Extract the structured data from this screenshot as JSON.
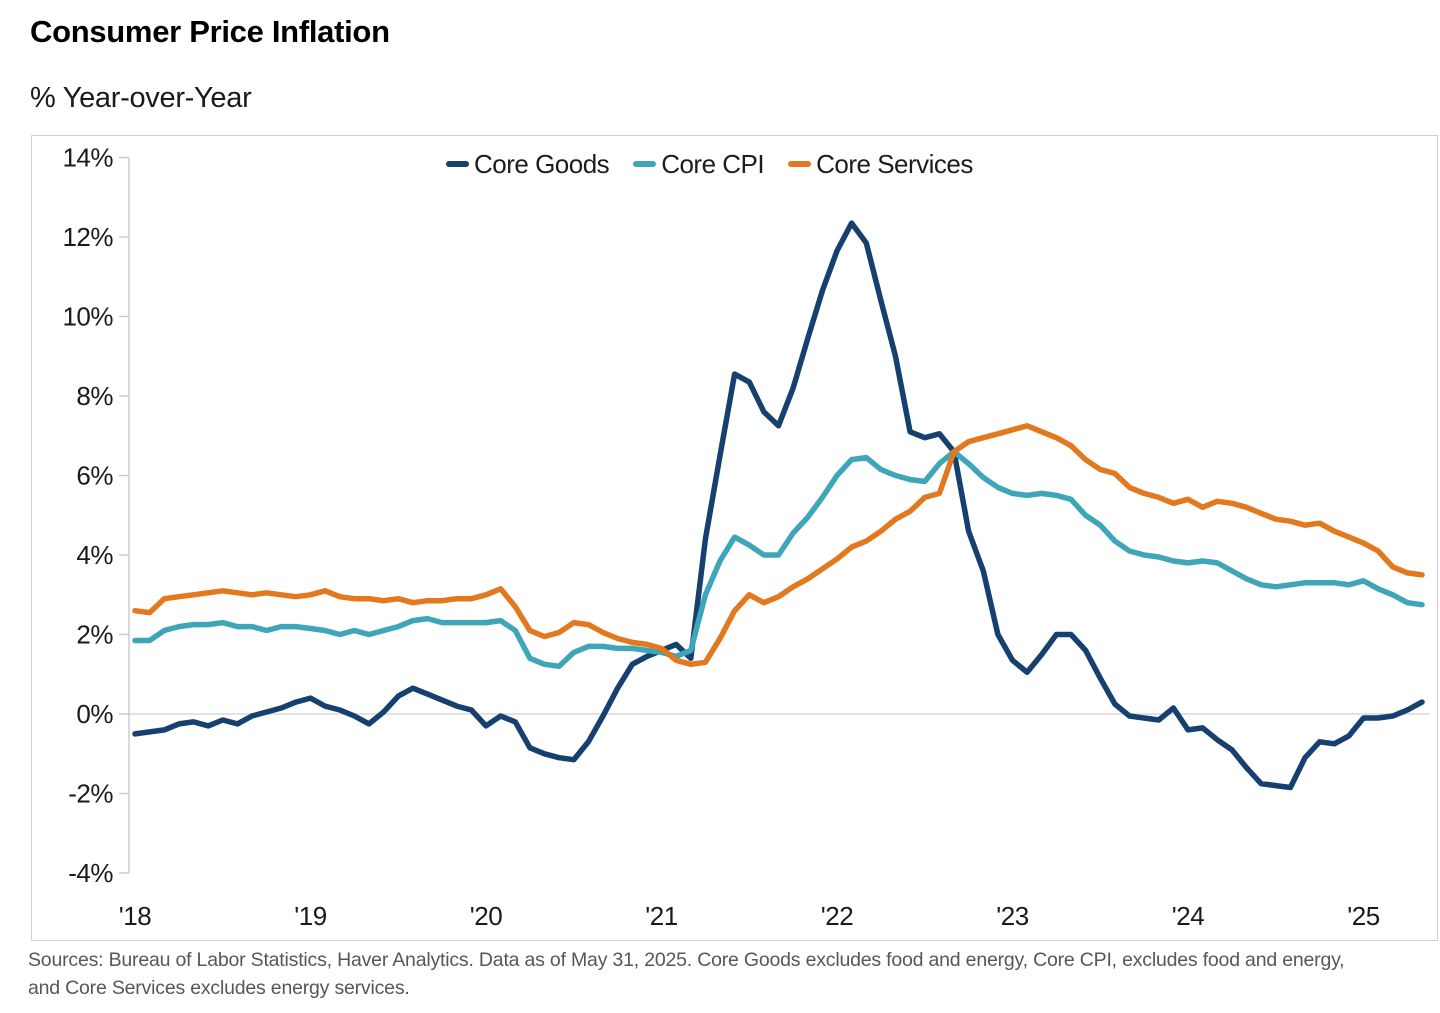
{
  "header": {
    "title": "Consumer Price Inflation",
    "subtitle": "% Year-over-Year"
  },
  "legend": {
    "items": [
      {
        "label": "Core Goods",
        "color": "#16406f"
      },
      {
        "label": "Core CPI",
        "color": "#3fa5b9"
      },
      {
        "label": "Core Services",
        "color": "#e2791e"
      }
    ]
  },
  "footer": {
    "lines": [
      "Sources: Bureau of Labor Statistics, Haver Analytics. Data as of May 31, 2025. Core Goods excludes food and energy, Core CPI, excludes food and energy,",
      "and Core Services excludes energy services."
    ]
  },
  "colors": {
    "core_goods": "#16406f",
    "core_cpi": "#3fa5b9",
    "core_services": "#e2791e",
    "axis": "#c9c9c9",
    "gridline": "#d9d9d9",
    "border": "#cfcfcf",
    "footer_text": "#56575b"
  },
  "chart_data": {
    "type": "line",
    "title": "Consumer Price Inflation",
    "subtitle": "% Year-over-Year",
    "x_unit": "month",
    "x_start": "2018-01",
    "x_end": "2025-05",
    "x_tick_labels": [
      "'18",
      "'19",
      "'20",
      "'21",
      "'22",
      "'23",
      "'24",
      "'25"
    ],
    "x_tick_month_index": [
      0,
      12,
      24,
      36,
      48,
      60,
      72,
      84
    ],
    "ylim": [
      -4,
      14
    ],
    "y_ticks": [
      14,
      12,
      10,
      8,
      6,
      4,
      2,
      0,
      "-2",
      "-4"
    ],
    "y_tick_suffix": "%",
    "grid": "horizontal line at 0% only",
    "legend_position": "top-center-inside",
    "series": [
      {
        "name": "Core Goods",
        "color": "#16406f",
        "values": [
          -0.5,
          -0.45,
          -0.4,
          -0.25,
          -0.2,
          -0.3,
          -0.15,
          -0.25,
          -0.05,
          0.05,
          0.15,
          0.3,
          0.4,
          0.2,
          0.1,
          -0.05,
          -0.25,
          0.05,
          0.45,
          0.65,
          0.5,
          0.35,
          0.2,
          0.1,
          -0.3,
          -0.05,
          -0.2,
          -0.85,
          -1.0,
          -1.1,
          -1.15,
          -0.7,
          -0.05,
          0.65,
          1.25,
          1.45,
          1.6,
          1.75,
          1.4,
          4.4,
          6.5,
          8.55,
          8.35,
          7.6,
          7.25,
          8.2,
          9.45,
          10.65,
          11.65,
          12.35,
          11.85,
          10.4,
          9.0,
          7.1,
          6.95,
          7.05,
          6.6,
          4.6,
          3.6,
          2.0,
          1.35,
          1.05,
          1.5,
          2.0,
          2.0,
          1.6,
          0.9,
          0.25,
          -0.05,
          -0.1,
          -0.15,
          0.15,
          -0.4,
          -0.35,
          -0.65,
          -0.9,
          -1.35,
          -1.75,
          -1.8,
          -1.85,
          -1.1,
          -0.7,
          -0.75,
          -0.55,
          -0.1,
          -0.1,
          -0.05,
          0.1,
          0.3
        ]
      },
      {
        "name": "Core CPI",
        "color": "#3fa5b9",
        "values": [
          1.85,
          1.85,
          2.1,
          2.2,
          2.25,
          2.25,
          2.3,
          2.2,
          2.2,
          2.1,
          2.2,
          2.2,
          2.15,
          2.1,
          2.0,
          2.1,
          2.0,
          2.1,
          2.2,
          2.35,
          2.4,
          2.3,
          2.3,
          2.3,
          2.3,
          2.35,
          2.1,
          1.4,
          1.25,
          1.2,
          1.55,
          1.7,
          1.7,
          1.65,
          1.65,
          1.6,
          1.55,
          1.45,
          1.6,
          3.0,
          3.85,
          4.45,
          4.25,
          4.0,
          4.0,
          4.55,
          4.95,
          5.45,
          6.0,
          6.4,
          6.45,
          6.15,
          6.0,
          5.9,
          5.85,
          6.3,
          6.6,
          6.3,
          5.95,
          5.7,
          5.55,
          5.5,
          5.55,
          5.5,
          5.4,
          5.0,
          4.75,
          4.35,
          4.1,
          4.0,
          3.95,
          3.85,
          3.8,
          3.85,
          3.8,
          3.6,
          3.4,
          3.25,
          3.2,
          3.25,
          3.3,
          3.3,
          3.3,
          3.25,
          3.35,
          3.15,
          3.0,
          2.8,
          2.75
        ]
      },
      {
        "name": "Core Services",
        "color": "#e2791e",
        "values": [
          2.6,
          2.55,
          2.9,
          2.95,
          3.0,
          3.05,
          3.1,
          3.05,
          3.0,
          3.05,
          3.0,
          2.95,
          3.0,
          3.1,
          2.95,
          2.9,
          2.9,
          2.85,
          2.9,
          2.8,
          2.85,
          2.85,
          2.9,
          2.9,
          3.0,
          3.15,
          2.7,
          2.1,
          1.95,
          2.05,
          2.3,
          2.25,
          2.05,
          1.9,
          1.8,
          1.75,
          1.65,
          1.35,
          1.25,
          1.3,
          1.9,
          2.6,
          3.0,
          2.8,
          2.95,
          3.2,
          3.4,
          3.65,
          3.9,
          4.2,
          4.35,
          4.6,
          4.9,
          5.1,
          5.45,
          5.55,
          6.6,
          6.85,
          6.95,
          7.05,
          7.15,
          7.25,
          7.1,
          6.95,
          6.75,
          6.4,
          6.15,
          6.05,
          5.7,
          5.55,
          5.45,
          5.3,
          5.4,
          5.2,
          5.35,
          5.3,
          5.2,
          5.05,
          4.9,
          4.85,
          4.75,
          4.8,
          4.6,
          4.45,
          4.3,
          4.1,
          3.7,
          3.55,
          3.5
        ]
      }
    ]
  }
}
